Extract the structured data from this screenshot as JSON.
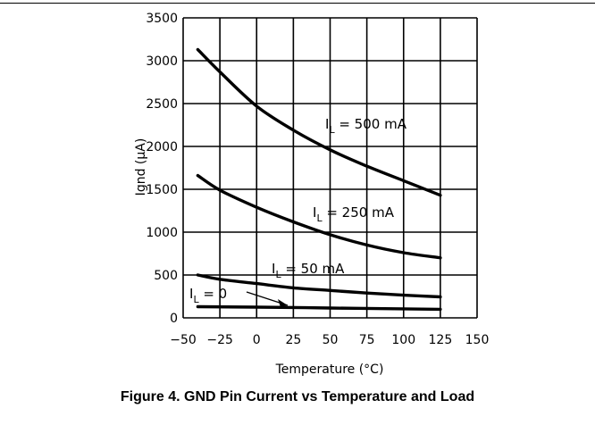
{
  "chart_data": {
    "type": "line",
    "title": "",
    "xlabel": "Temperature (°C)",
    "ylabel": "Ignd (μA)",
    "xlim": [
      -50,
      150
    ],
    "ylim": [
      0,
      3500
    ],
    "xticks": [
      -50,
      -25,
      0,
      25,
      50,
      75,
      100,
      125,
      150
    ],
    "yticks": [
      0,
      500,
      1000,
      1500,
      2000,
      2500,
      3000,
      3500
    ],
    "grid": true,
    "series": [
      {
        "name": "IL = 500 mA",
        "label_main": "I",
        "label_sub": "L",
        "label_rest": " = 500 mA",
        "x": [
          -40,
          -25,
          0,
          25,
          50,
          75,
          100,
          125
        ],
        "y": [
          3130,
          2870,
          2470,
          2190,
          1960,
          1770,
          1600,
          1430
        ]
      },
      {
        "name": "IL = 250 mA",
        "label_main": "I",
        "label_sub": "L",
        "label_rest": " = 250 mA",
        "x": [
          -40,
          -25,
          0,
          25,
          50,
          75,
          100,
          125
        ],
        "y": [
          1660,
          1490,
          1290,
          1120,
          970,
          850,
          760,
          700
        ]
      },
      {
        "name": "IL = 50 mA",
        "label_main": "I",
        "label_sub": "L",
        "label_rest": " = 50 mA",
        "x": [
          -40,
          -25,
          0,
          25,
          50,
          75,
          100,
          125
        ],
        "y": [
          500,
          450,
          400,
          350,
          320,
          290,
          265,
          245
        ]
      },
      {
        "name": "IL = 0",
        "label_main": "I",
        "label_sub": "L",
        "label_rest": " = 0",
        "x": [
          -40,
          0,
          50,
          100,
          125
        ],
        "y": [
          130,
          125,
          115,
          105,
          100
        ]
      }
    ]
  },
  "caption": "Figure 4. GND Pin Current vs Temperature and Load"
}
